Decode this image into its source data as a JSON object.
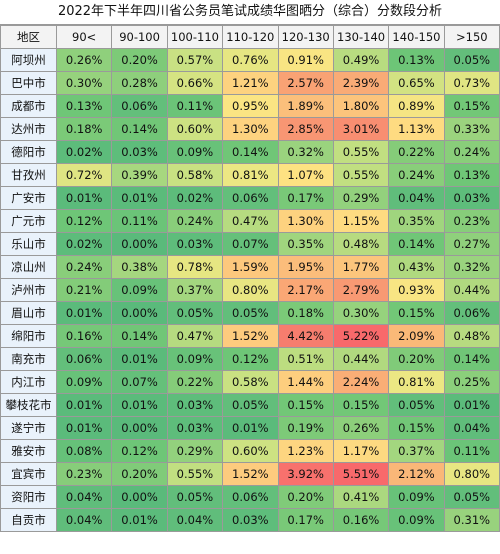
{
  "title": "2022年下半年四川省公务员笔试成绩华图晒分（综合）分数段分析",
  "headers": [
    "地区",
    "90<",
    "90-100",
    "100-110",
    "110-120",
    "120-130",
    "130-140",
    "140-150",
    ">150"
  ],
  "rows": [
    {
      "region": "阿坝州",
      "values": [
        "0.26%",
        "0.20%",
        "0.57%",
        "0.76%",
        "0.91%",
        "0.49%",
        "0.13%",
        "0.05%"
      ],
      "colors": [
        "#8fd07c",
        "#7dca78",
        "#c9e183",
        "#e6e682",
        "#f9e583",
        "#b8dc80",
        "#6dc577",
        "#63be7b"
      ]
    },
    {
      "region": "巴中市",
      "values": [
        "0.30%",
        "0.28%",
        "0.66%",
        "1.21%",
        "2.57%",
        "2.39%",
        "0.65%",
        "0.73%"
      ],
      "colors": [
        "#96d27d",
        "#8ecf7c",
        "#d5e382",
        "#fdd27f",
        "#f9a274",
        "#f9ab76",
        "#d2e282",
        "#e0e583"
      ]
    },
    {
      "region": "成都市",
      "values": [
        "0.13%",
        "0.06%",
        "0.11%",
        "0.95%",
        "1.89%",
        "1.80%",
        "0.89%",
        "0.15%"
      ],
      "colors": [
        "#6fc677",
        "#63bf7b",
        "#6bc478",
        "#fbe583",
        "#fbbf7b",
        "#fcc47c",
        "#f5e583",
        "#72c777"
      ]
    },
    {
      "region": "达州市",
      "values": [
        "0.18%",
        "0.14%",
        "0.60%",
        "1.30%",
        "2.85%",
        "3.01%",
        "1.13%",
        "0.33%"
      ],
      "colors": [
        "#7bca78",
        "#71c677",
        "#cde282",
        "#fdd27f",
        "#f89673",
        "#f88e71",
        "#fedb81",
        "#9bd37e"
      ]
    },
    {
      "region": "德阳市",
      "values": [
        "0.02%",
        "0.03%",
        "0.09%",
        "0.14%",
        "0.32%",
        "0.55%",
        "0.22%",
        "0.24%"
      ],
      "colors": [
        "#5dbc7b",
        "#5ebd7b",
        "#68c279",
        "#70c677",
        "#9ad37e",
        "#c1df81",
        "#85cc79",
        "#89ce7a"
      ]
    },
    {
      "region": "甘孜州",
      "values": [
        "0.72%",
        "0.39%",
        "0.58%",
        "0.81%",
        "1.07%",
        "0.55%",
        "0.24%",
        "0.13%"
      ],
      "colors": [
        "#dfe583",
        "#a7d77f",
        "#c9e182",
        "#ece783",
        "#fee282",
        "#c1df81",
        "#89ce7a",
        "#6fc677"
      ]
    },
    {
      "region": "广安市",
      "values": [
        "0.01%",
        "0.01%",
        "0.02%",
        "0.06%",
        "0.17%",
        "0.29%",
        "0.04%",
        "0.03%"
      ],
      "colors": [
        "#5bbb7b",
        "#5bbb7b",
        "#5dbc7b",
        "#63bf7b",
        "#79c978",
        "#93d17d",
        "#60bd7b",
        "#5ebd7b"
      ]
    },
    {
      "region": "广元市",
      "values": [
        "0.12%",
        "0.11%",
        "0.24%",
        "0.47%",
        "1.30%",
        "1.15%",
        "0.35%",
        "0.23%"
      ],
      "colors": [
        "#6ec677",
        "#6bc478",
        "#89ce7a",
        "#b6db80",
        "#fdd27f",
        "#fedb81",
        "#a0d57e",
        "#87cd7a"
      ]
    },
    {
      "region": "乐山市",
      "values": [
        "0.02%",
        "0.00%",
        "0.03%",
        "0.07%",
        "0.35%",
        "0.48%",
        "0.14%",
        "0.27%"
      ],
      "colors": [
        "#5dbc7b",
        "#5aba7b",
        "#5ebd7b",
        "#65c07a",
        "#a0d57e",
        "#b7db80",
        "#70c677",
        "#8fd07c"
      ]
    },
    {
      "region": "凉山州",
      "values": [
        "0.24%",
        "0.38%",
        "0.78%",
        "1.59%",
        "1.95%",
        "1.77%",
        "0.43%",
        "0.32%"
      ],
      "colors": [
        "#89ce7a",
        "#a5d67f",
        "#e6e682",
        "#fdc87d",
        "#fbbd7b",
        "#fcc57c",
        "#b0d97f",
        "#9ad37e"
      ]
    },
    {
      "region": "泸州市",
      "values": [
        "0.21%",
        "0.09%",
        "0.37%",
        "0.80%",
        "2.17%",
        "2.79%",
        "0.93%",
        "0.44%"
      ],
      "colors": [
        "#83cc79",
        "#68c279",
        "#a3d67f",
        "#e8e682",
        "#faa775",
        "#f89973",
        "#f8e583",
        "#b1d97f"
      ]
    },
    {
      "region": "眉山市",
      "values": [
        "0.01%",
        "0.00%",
        "0.05%",
        "0.05%",
        "0.18%",
        "0.30%",
        "0.15%",
        "0.06%"
      ],
      "colors": [
        "#5bbb7b",
        "#5aba7b",
        "#62be7b",
        "#62be7b",
        "#7bca78",
        "#96d27d",
        "#72c777",
        "#63bf7b"
      ]
    },
    {
      "region": "绵阳市",
      "values": [
        "0.16%",
        "0.14%",
        "0.47%",
        "1.52%",
        "4.42%",
        "5.22%",
        "2.09%",
        "0.48%"
      ],
      "colors": [
        "#76c878",
        "#71c677",
        "#b6db80",
        "#fdcb7e",
        "#f67d6e",
        "#f8696b",
        "#fab978",
        "#b7db80"
      ]
    },
    {
      "region": "南充市",
      "values": [
        "0.06%",
        "0.01%",
        "0.09%",
        "0.12%",
        "0.51%",
        "0.44%",
        "0.20%",
        "0.14%"
      ],
      "colors": [
        "#63bf7b",
        "#5bbb7b",
        "#68c279",
        "#6ec677",
        "#bcdd80",
        "#b1d97f",
        "#80cb79",
        "#70c677"
      ]
    },
    {
      "region": "内江市",
      "values": [
        "0.09%",
        "0.07%",
        "0.22%",
        "0.58%",
        "1.44%",
        "2.24%",
        "0.81%",
        "0.25%"
      ],
      "colors": [
        "#68c279",
        "#65c07a",
        "#85cc79",
        "#c9e182",
        "#fdce7e",
        "#faae76",
        "#ece783",
        "#8bcf7b"
      ]
    },
    {
      "region": "攀枝花市",
      "values": [
        "0.01%",
        "0.01%",
        "0.03%",
        "0.05%",
        "0.15%",
        "0.15%",
        "0.05%",
        "0.01%"
      ],
      "colors": [
        "#5bbb7b",
        "#5bbb7b",
        "#5ebd7b",
        "#62be7b",
        "#72c777",
        "#72c777",
        "#62be7b",
        "#5bbb7b"
      ]
    },
    {
      "region": "遂宁市",
      "values": [
        "0.01%",
        "0.00%",
        "0.03%",
        "0.01%",
        "0.19%",
        "0.26%",
        "0.15%",
        "0.04%"
      ],
      "colors": [
        "#5bbb7b",
        "#5aba7b",
        "#5ebd7b",
        "#5bbb7b",
        "#7dca78",
        "#8dcf7b",
        "#72c777",
        "#60bd7b"
      ]
    },
    {
      "region": "雅安市",
      "values": [
        "0.08%",
        "0.12%",
        "0.29%",
        "0.60%",
        "1.23%",
        "1.17%",
        "0.37%",
        "0.11%"
      ],
      "colors": [
        "#66c179",
        "#6ec677",
        "#93d17d",
        "#cde282",
        "#fdd580",
        "#fdd981",
        "#a3d67f",
        "#6bc478"
      ]
    },
    {
      "region": "宜宾市",
      "values": [
        "0.23%",
        "0.20%",
        "0.55%",
        "1.52%",
        "3.92%",
        "5.51%",
        "2.12%",
        "0.80%"
      ],
      "colors": [
        "#87cd7a",
        "#80cb79",
        "#c1df81",
        "#fdcb7e",
        "#f8716d",
        "#f8696b",
        "#fab778",
        "#e8e682"
      ]
    },
    {
      "region": "资阳市",
      "values": [
        "0.04%",
        "0.00%",
        "0.05%",
        "0.06%",
        "0.20%",
        "0.41%",
        "0.09%",
        "0.05%"
      ],
      "colors": [
        "#60bd7b",
        "#5aba7b",
        "#62be7b",
        "#63bf7b",
        "#80cb79",
        "#abd87f",
        "#68c279",
        "#62be7b"
      ]
    },
    {
      "region": "自贡市",
      "values": [
        "0.04%",
        "0.01%",
        "0.04%",
        "0.03%",
        "0.17%",
        "0.16%",
        "0.09%",
        "0.31%"
      ],
      "colors": [
        "#60bd7b",
        "#5bbb7b",
        "#60bd7b",
        "#5ebd7b",
        "#79c978",
        "#76c878",
        "#68c279",
        "#98d27d"
      ]
    }
  ]
}
